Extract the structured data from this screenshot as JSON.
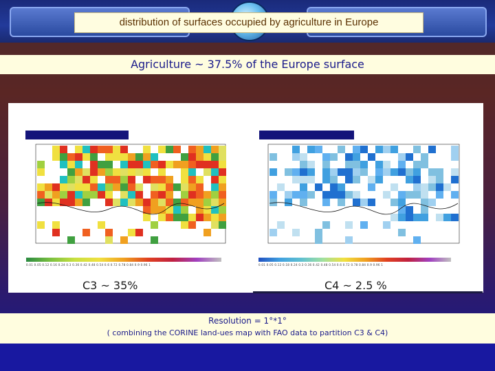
{
  "slide": {
    "title": "distribution  of surfaces occupied by agriculture in Europe",
    "subtitle": "Agriculture ~ 37.5% of the Europe surface",
    "c3_label": "C3 ~ 35%",
    "c4_label": "C4 ~ 2.5 %",
    "resolution": "Resolution = 1°*1°",
    "note": "( combining the CORINE land-ues map with FAO data to partition C3 &  C4)",
    "c3_colorbar_ticks": "0.01 0.05 0.12 0.16 0.24 0.3 0.36 0.42 0.48 0.54 0.6 0.72 0.78 0.84 0.9 0.96 1",
    "c4_colorbar_ticks": "0.01 0.05 0.12 0.18 0.24 0.3 0.36 0.42 0.48 0.54 0.6 0.72 0.78 0.84 0.9 0.96 1"
  },
  "colors": {
    "title_text": "#5a3000",
    "subtitle_text": "#1a1a8a",
    "panel_bg": "#ffffff",
    "map_header": "#14147a"
  }
}
